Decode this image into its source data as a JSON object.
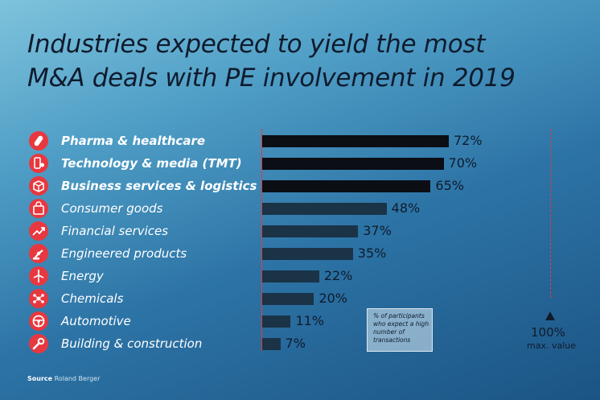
{
  "chart_data": {
    "type": "bar",
    "orientation": "horizontal",
    "title_lines": [
      "Industries expected to yield the most",
      "M&A deals with PE involvement in 2019"
    ],
    "categories": [
      "Pharma & healthcare",
      "Technology & media (TMT)",
      "Business services & logistics",
      "Consumer goods",
      "Financial services",
      "Engineered products",
      "Energy",
      "Chemicals",
      "Automotive",
      "Building & construction"
    ],
    "values": [
      72,
      70,
      65,
      48,
      37,
      35,
      22,
      20,
      11,
      7
    ],
    "value_labels": [
      "72%",
      "70%",
      "65%",
      "48%",
      "37%",
      "35%",
      "22%",
      "20%",
      "11%",
      "7%"
    ],
    "bold_top": 3,
    "icons": [
      "pill-icon",
      "phone-gear-icon",
      "package-icon",
      "shopping-bag-icon",
      "trend-arrow-icon",
      "robot-arm-icon",
      "wind-turbine-icon",
      "molecule-icon",
      "steering-wheel-icon",
      "wrench-icon"
    ],
    "xlim": [
      0,
      100
    ],
    "max_value_label": "100%",
    "max_value_caption": "max. value",
    "legend_text": "% of participants who expect a high number of transactions",
    "colors": {
      "bar_top": "#0b0e15",
      "bar_other": "#1a3347",
      "accent": "#e8383f"
    }
  },
  "source_label": "Source",
  "source_name": "Roland Berger"
}
